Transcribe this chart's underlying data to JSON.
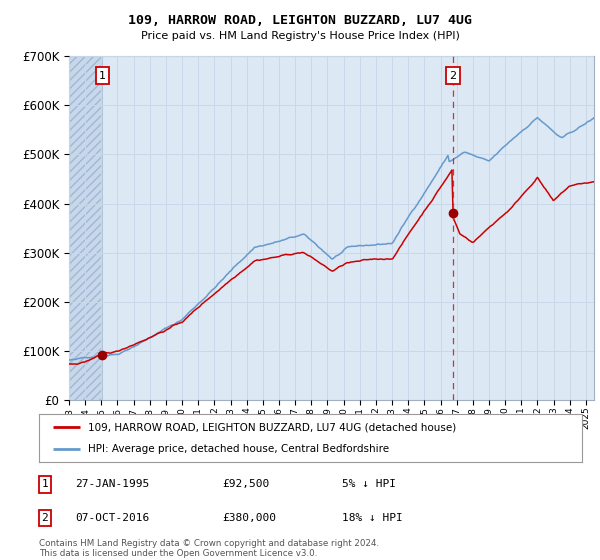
{
  "title": "109, HARROW ROAD, LEIGHTON BUZZARD, LU7 4UG",
  "subtitle": "Price paid vs. HM Land Registry's House Price Index (HPI)",
  "legend_line1": "109, HARROW ROAD, LEIGHTON BUZZARD, LU7 4UG (detached house)",
  "legend_line2": "HPI: Average price, detached house, Central Bedfordshire",
  "transaction1_date": "27-JAN-1995",
  "transaction1_price": "£92,500",
  "transaction1_hpi": "5% ↓ HPI",
  "transaction2_date": "07-OCT-2016",
  "transaction2_price": "£380,000",
  "transaction2_hpi": "18% ↓ HPI",
  "footnote": "Contains HM Land Registry data © Crown copyright and database right 2024.\nThis data is licensed under the Open Government Licence v3.0.",
  "hpi_color": "#6699cc",
  "price_color": "#cc0000",
  "marker_color": "#990000",
  "grid_color": "#c8d8e8",
  "plot_bg_color": "#dce8f4",
  "ylim": [
    0,
    700000
  ],
  "yticks": [
    0,
    100000,
    200000,
    300000,
    400000,
    500000,
    600000,
    700000
  ],
  "transaction1_year": 1995.07,
  "transaction1_value": 92500,
  "transaction2_year": 2016.77,
  "transaction2_value": 380000,
  "xmin": 1993.0,
  "xmax": 2025.5
}
